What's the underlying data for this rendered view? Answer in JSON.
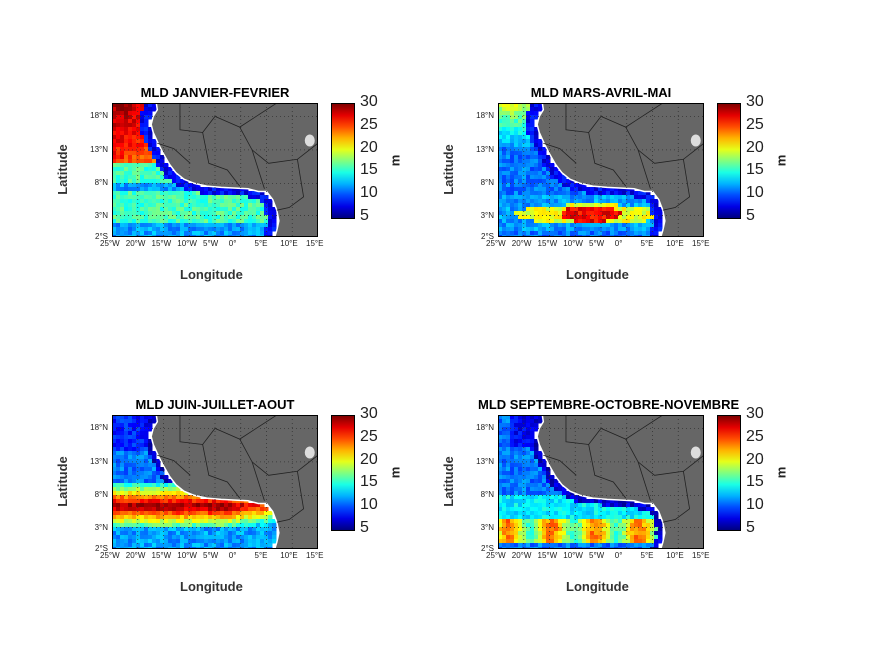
{
  "panels": [
    {
      "title": "MLD  JANVIER-FEVRIER",
      "pattern": "janfev"
    },
    {
      "title": "MLD  MARS-AVRIL-MAI",
      "pattern": "mam"
    },
    {
      "title": "MLD  JUIN-JUILLET-AOUT",
      "pattern": "jja"
    },
    {
      "title": "MLD  SEPTEMBRE-OCTOBRE-NOVEMBRE",
      "pattern": "son"
    }
  ],
  "axes": {
    "xlabel": "Longitude",
    "ylabel": "Latitude",
    "yticks": [
      "18°N",
      "13°N",
      "8°N",
      "3°N",
      "2°S"
    ],
    "xticks": [
      "25°W",
      "20°W",
      "15°W",
      "10°W",
      "5°W",
      "0°",
      "5°E",
      "10°E",
      "15°E"
    ]
  },
  "colorbar": {
    "ticks": [
      "30",
      "25",
      "20",
      "15",
      "10",
      "5"
    ],
    "unit": "m",
    "range": [
      5,
      30
    ],
    "colormap": "jet"
  },
  "colors": {
    "land": "#666666",
    "coast": "#ffffff",
    "grid": "#333333"
  }
}
